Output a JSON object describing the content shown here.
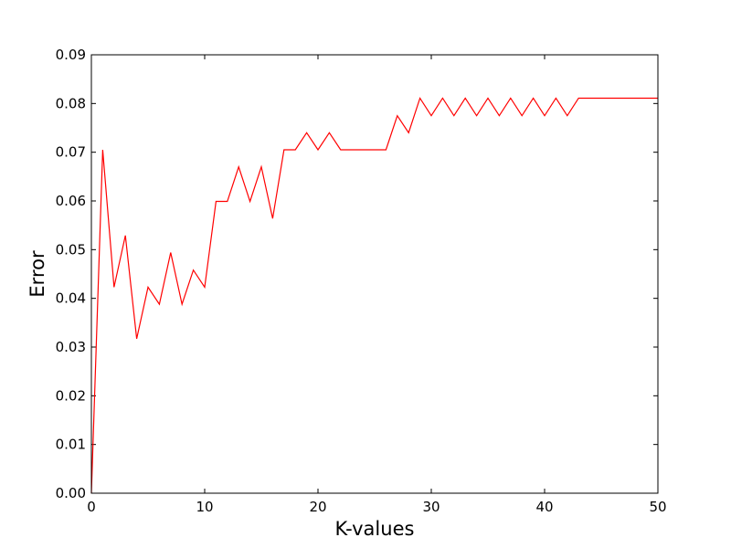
{
  "chart_data": {
    "type": "line",
    "title": "",
    "xlabel": "K-values",
    "ylabel": "Error",
    "xlim": [
      0,
      50
    ],
    "ylim": [
      0,
      0.09
    ],
    "grid": false,
    "legend": "none",
    "x_ticks": [
      {
        "value": 0,
        "label": "0"
      },
      {
        "value": 10,
        "label": "10"
      },
      {
        "value": 20,
        "label": "20"
      },
      {
        "value": 30,
        "label": "30"
      },
      {
        "value": 40,
        "label": "40"
      },
      {
        "value": 50,
        "label": "50"
      }
    ],
    "y_ticks": [
      {
        "value": 0.0,
        "label": "0.00"
      },
      {
        "value": 0.01,
        "label": "0.01"
      },
      {
        "value": 0.02,
        "label": "0.02"
      },
      {
        "value": 0.03,
        "label": "0.03"
      },
      {
        "value": 0.04,
        "label": "0.04"
      },
      {
        "value": 0.05,
        "label": "0.05"
      },
      {
        "value": 0.06,
        "label": "0.06"
      },
      {
        "value": 0.07,
        "label": "0.07"
      },
      {
        "value": 0.08,
        "label": "0.08"
      },
      {
        "value": 0.09,
        "label": "0.09"
      }
    ],
    "series": [
      {
        "color": "#ff0000",
        "x": [
          0,
          1,
          2,
          3,
          4,
          5,
          6,
          7,
          8,
          9,
          10,
          11,
          12,
          13,
          14,
          15,
          16,
          17,
          18,
          19,
          20,
          21,
          22,
          23,
          24,
          25,
          26,
          27,
          28,
          29,
          30,
          31,
          32,
          33,
          34,
          35,
          36,
          37,
          38,
          39,
          40,
          41,
          42,
          43,
          44,
          45,
          46,
          47,
          48,
          49,
          50
        ],
        "y": [
          0.0,
          0.0705,
          0.0423,
          0.0529,
          0.0317,
          0.0423,
          0.0388,
          0.0494,
          0.0388,
          0.0458,
          0.0423,
          0.0599,
          0.0599,
          0.067,
          0.0599,
          0.067,
          0.0564,
          0.0705,
          0.0705,
          0.074,
          0.0705,
          0.074,
          0.0705,
          0.0705,
          0.0705,
          0.0705,
          0.0705,
          0.0775,
          0.074,
          0.0811,
          0.0775,
          0.0811,
          0.0775,
          0.0811,
          0.0775,
          0.0811,
          0.0775,
          0.0811,
          0.0775,
          0.0811,
          0.0775,
          0.0811,
          0.0775,
          0.0811,
          0.0811,
          0.0811,
          0.0811,
          0.0811,
          0.0811,
          0.0811,
          0.0811
        ]
      }
    ]
  }
}
